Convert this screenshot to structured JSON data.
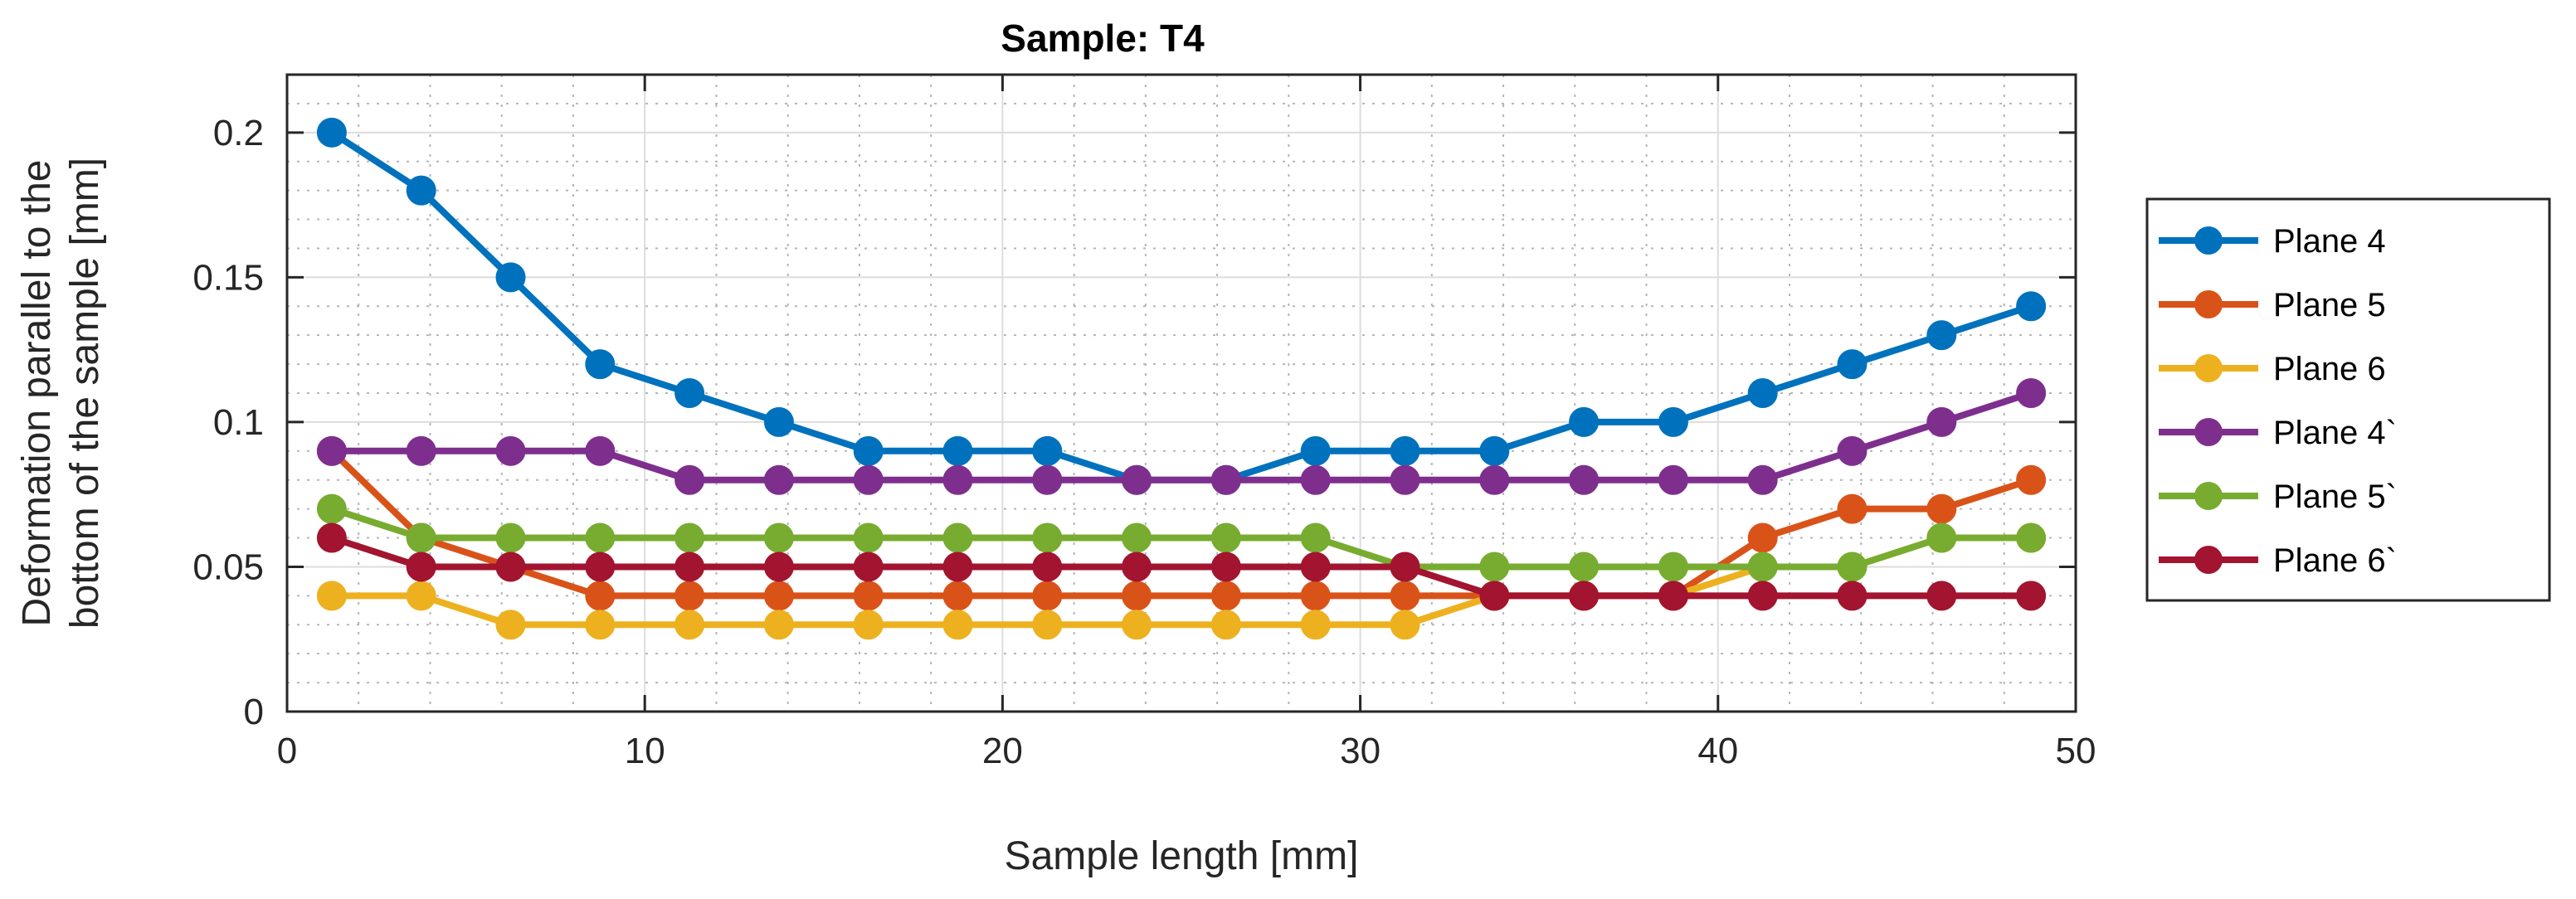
{
  "chart_data": {
    "type": "line",
    "title": "Sample: T4",
    "xlabel": "Sample length [mm]",
    "ylabel_line1": "Deformation parallel to the",
    "ylabel_line2": "bottom of the sample [mm]",
    "xlim": [
      0,
      50
    ],
    "ylim": [
      0,
      0.22
    ],
    "xticks": [
      0,
      10,
      20,
      30,
      40,
      50
    ],
    "xtick_labels": [
      "0",
      "10",
      "20",
      "30",
      "40",
      "50"
    ],
    "yticks": [
      0,
      0.05,
      0.1,
      0.15,
      0.2
    ],
    "ytick_labels": [
      "0",
      "0.05",
      "0.1",
      "0.15",
      "0.2"
    ],
    "grid": "major and minor",
    "legend_position": "outside-right",
    "x": [
      1.25,
      3.75,
      6.25,
      8.75,
      11.25,
      13.75,
      16.25,
      18.75,
      21.25,
      23.75,
      26.25,
      28.75,
      31.25,
      33.75,
      36.25,
      38.75,
      41.25,
      43.75,
      46.25,
      48.75
    ],
    "series": [
      {
        "name": "Plane 4",
        "color": "#0072BD",
        "values": [
          0.2,
          0.18,
          0.15,
          0.12,
          0.11,
          0.1,
          0.09,
          0.09,
          0.09,
          0.08,
          0.08,
          0.09,
          0.09,
          0.09,
          0.1,
          0.1,
          0.11,
          0.12,
          0.13,
          0.14
        ]
      },
      {
        "name": "Plane 5",
        "color": "#D95319",
        "values": [
          0.09,
          0.06,
          0.05,
          0.04,
          0.04,
          0.04,
          0.04,
          0.04,
          0.04,
          0.04,
          0.04,
          0.04,
          0.04,
          0.04,
          0.04,
          0.04,
          0.06,
          0.07,
          0.07,
          0.08
        ]
      },
      {
        "name": "Plane 6",
        "color": "#EDB120",
        "values": [
          0.04,
          0.04,
          0.03,
          0.03,
          0.03,
          0.03,
          0.03,
          0.03,
          0.03,
          0.03,
          0.03,
          0.03,
          0.03,
          0.04,
          0.04,
          0.04,
          0.05,
          0.05,
          0.06,
          0.06
        ]
      },
      {
        "name": "Plane 4`",
        "color": "#7E2F8E",
        "values": [
          0.09,
          0.09,
          0.09,
          0.09,
          0.08,
          0.08,
          0.08,
          0.08,
          0.08,
          0.08,
          0.08,
          0.08,
          0.08,
          0.08,
          0.08,
          0.08,
          0.08,
          0.09,
          0.1,
          0.11
        ]
      },
      {
        "name": "Plane 5`",
        "color": "#77AC30",
        "values": [
          0.07,
          0.06,
          0.06,
          0.06,
          0.06,
          0.06,
          0.06,
          0.06,
          0.06,
          0.06,
          0.06,
          0.06,
          0.05,
          0.05,
          0.05,
          0.05,
          0.05,
          0.05,
          0.06,
          0.06
        ]
      },
      {
        "name": "Plane 6`",
        "color": "#A2142F",
        "values": [
          0.06,
          0.05,
          0.05,
          0.05,
          0.05,
          0.05,
          0.05,
          0.05,
          0.05,
          0.05,
          0.05,
          0.05,
          0.05,
          0.04,
          0.04,
          0.04,
          0.04,
          0.04,
          0.04,
          0.04
        ]
      }
    ]
  }
}
